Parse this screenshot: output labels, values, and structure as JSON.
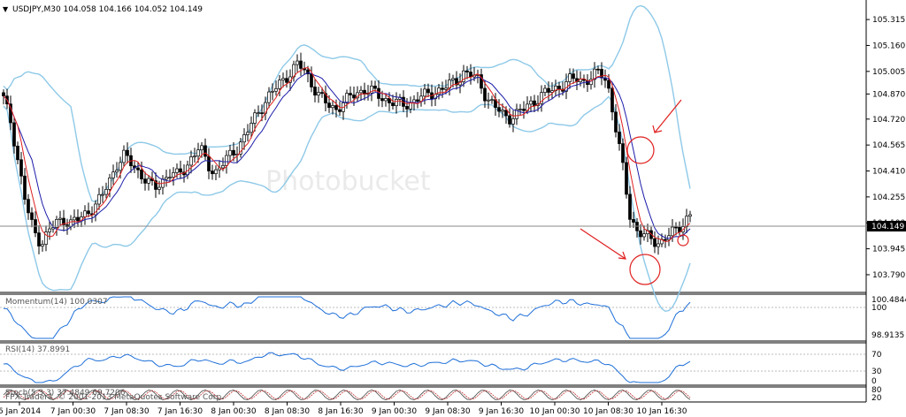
{
  "chart_data": {
    "type": "candlestick",
    "symbol_header": "USDJPY,M30  104.058 104.166 104.052 104.149",
    "watermark": "Photobucket",
    "copyright": "FPX Trader4, © 2001-2013 MetaQuotes Software Corp.",
    "price_axis": {
      "ylim": [
        103.7,
        105.4
      ],
      "ticks": [
        "105.315",
        "105.160",
        "105.005",
        "104.870",
        "104.720",
        "104.565",
        "104.410",
        "104.255",
        "104.100",
        "103.945",
        "103.790"
      ],
      "current_price_label": "104.149"
    },
    "time_axis_labels": [
      "6 Jan 2014",
      "7 Jan 00:30",
      "7 Jan 08:30",
      "7 Jan 16:30",
      "8 Jan 00:30",
      "8 Jan 08:30",
      "8 Jan 16:30",
      "9 Jan 00:30",
      "9 Jan 08:30",
      "9 Jan 16:30",
      "10 Jan 00:30",
      "10 Jan 08:30",
      "10 Jan 16:30"
    ],
    "close_series": [
      104.84,
      104.7,
      104.45,
      104.2,
      104.05,
      103.98,
      104.05,
      104.1,
      104.12,
      104.1,
      104.12,
      104.16,
      104.2,
      104.25,
      104.35,
      104.45,
      104.5,
      104.45,
      104.4,
      104.35,
      104.3,
      104.35,
      104.4,
      104.38,
      104.42,
      104.5,
      104.55,
      104.45,
      104.4,
      104.45,
      104.5,
      104.55,
      104.62,
      104.7,
      104.78,
      104.85,
      104.9,
      104.95,
      105.0,
      105.05,
      105.0,
      104.92,
      104.85,
      104.8,
      104.78,
      104.82,
      104.85,
      104.88,
      104.9,
      104.88,
      104.85,
      104.83,
      104.82,
      104.8,
      104.82,
      104.85,
      104.86,
      104.88,
      104.9,
      104.92,
      104.95,
      105.0,
      104.98,
      104.95,
      104.85,
      104.8,
      104.75,
      104.73,
      104.75,
      104.78,
      104.82,
      104.85,
      104.88,
      104.9,
      104.92,
      104.95,
      104.96,
      104.95,
      104.97,
      105.0,
      104.95,
      104.7,
      104.45,
      104.15,
      104.05,
      104.02,
      104.0,
      103.98,
      104.02,
      104.05,
      104.1,
      104.149
    ],
    "momentum_panel": {
      "label": "Momentum(14) 100.0307",
      "ticks": [
        "100.4844",
        "100",
        "98.9135"
      ]
    },
    "rsi_panel": {
      "label": "RSI(14) 37.8991",
      "ticks": [
        "70",
        "30",
        "0"
      ]
    },
    "stoch_panel": {
      "label": "Stoch(5,3,3) 37.4849 69.7206",
      "ticks": [
        "80",
        "20"
      ]
    }
  }
}
